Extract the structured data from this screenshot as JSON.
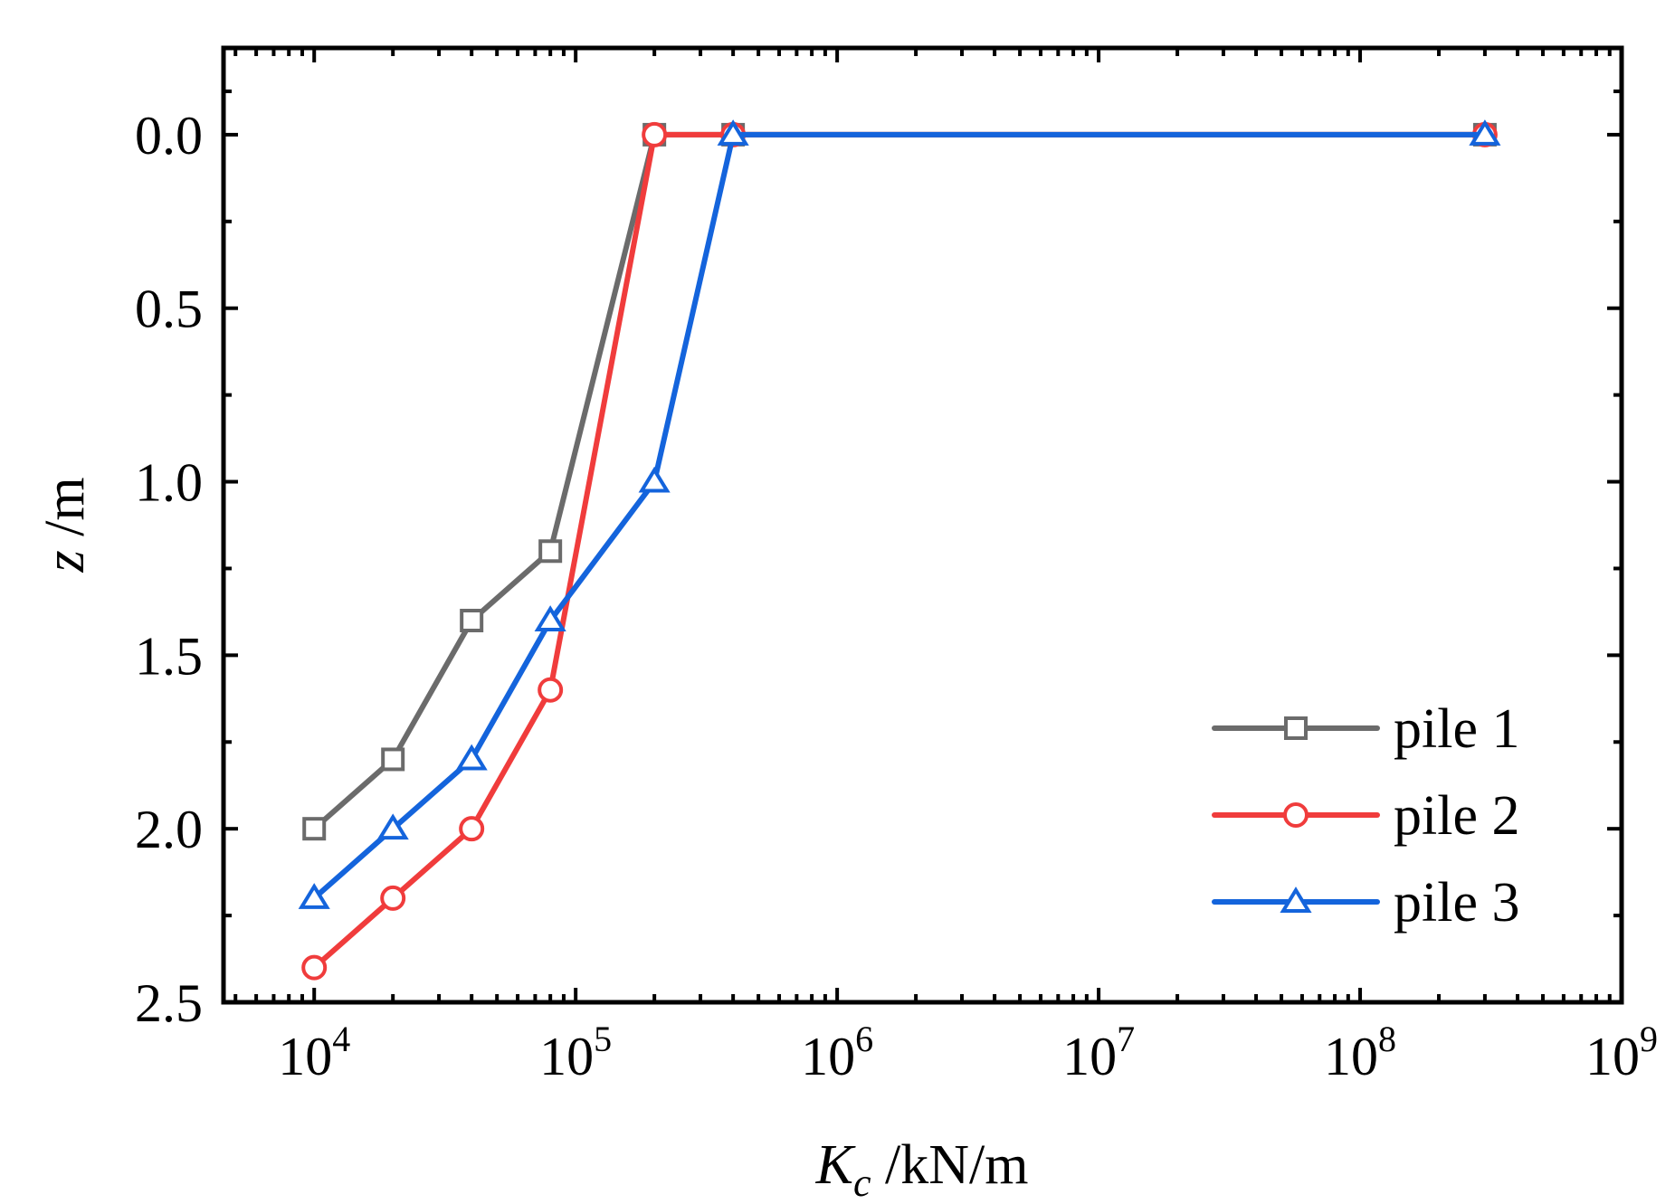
{
  "chart_data": {
    "type": "line",
    "title": "",
    "xlabel": {
      "italic_main": "K",
      "subscript": "c",
      "unit": " /kN/m"
    },
    "ylabel": {
      "italic_main": "z",
      "unit": " /m"
    },
    "x_scale": "log",
    "xlim": [
      4500,
      1000000000
    ],
    "ylim": [
      2.5,
      -0.25
    ],
    "y_inverted": true,
    "x_ticks": [
      {
        "value": 10000,
        "base": "10",
        "exp": "4"
      },
      {
        "value": 100000,
        "base": "10",
        "exp": "5"
      },
      {
        "value": 1000000,
        "base": "10",
        "exp": "6"
      },
      {
        "value": 10000000,
        "base": "10",
        "exp": "7"
      },
      {
        "value": 100000000,
        "base": "10",
        "exp": "8"
      },
      {
        "value": 1000000000,
        "base": "10",
        "exp": "9"
      }
    ],
    "y_ticks": [
      {
        "value": 0.0,
        "label": "0.0"
      },
      {
        "value": 0.5,
        "label": "0.5"
      },
      {
        "value": 1.0,
        "label": "1.0"
      },
      {
        "value": 1.5,
        "label": "1.5"
      },
      {
        "value": 2.0,
        "label": "2.0"
      },
      {
        "value": 2.5,
        "label": "2.5"
      }
    ],
    "grid": false,
    "legend_position": "bottom-right",
    "series": [
      {
        "name": "pile 1",
        "color": "#6b6b6b",
        "marker": "square",
        "x": [
          10000,
          20000,
          40000,
          80000,
          200000,
          400000,
          300000000
        ],
        "y": [
          2.0,
          1.8,
          1.4,
          1.2,
          0.0,
          0.0,
          0.0
        ]
      },
      {
        "name": "pile 2",
        "color": "#f03c3c",
        "marker": "circle",
        "x": [
          10000,
          20000,
          40000,
          80000,
          200000,
          400000,
          300000000
        ],
        "y": [
          2.4,
          2.2,
          2.0,
          1.6,
          0.0,
          0.0,
          0.0
        ]
      },
      {
        "name": "pile 3",
        "color": "#1464dc",
        "marker": "triangle",
        "x": [
          10000,
          20000,
          40000,
          80000,
          200000,
          400000,
          300000000
        ],
        "y": [
          2.2,
          2.0,
          1.8,
          1.4,
          1.0,
          0.0,
          0.0
        ]
      }
    ]
  }
}
